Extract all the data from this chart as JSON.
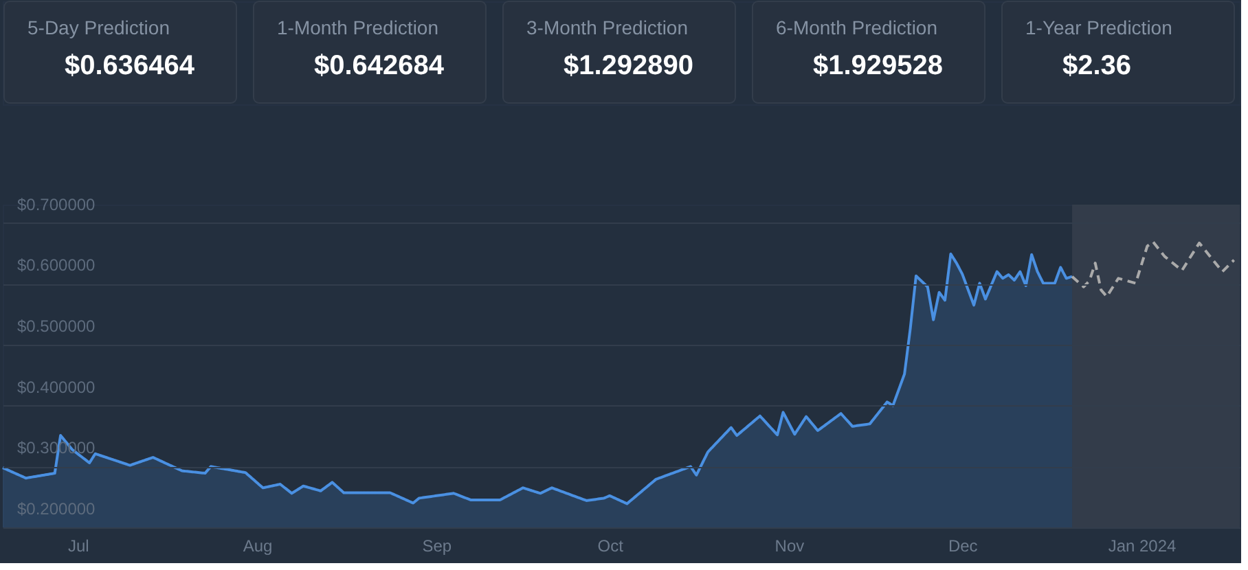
{
  "chart_data": {
    "type": "area",
    "annotations": [
      "5-Day Prediction",
      "$0.636464",
      "1-Month Prediction",
      "$0.642684",
      "3-Month Prediction",
      "$1.292890",
      "6-Month Prediction",
      "$1.929528",
      "1-Year Prediction",
      "$2.36"
    ],
    "series": [
      {
        "color": "#4a90e2",
        "x": [
          "2023-06-18",
          "2023-06-22",
          "2023-06-27",
          "2023-06-28",
          "2023-06-30",
          "2023-07-03",
          "2023-07-04",
          "2023-07-10",
          "2023-07-14",
          "2023-07-19",
          "2023-07-23",
          "2023-07-24",
          "2023-07-30",
          "2023-08-02",
          "2023-08-05",
          "2023-08-07",
          "2023-08-09",
          "2023-08-12",
          "2023-08-14",
          "2023-08-16",
          "2023-08-24",
          "2023-08-28",
          "2023-08-29",
          "2023-09-04",
          "2023-09-07",
          "2023-09-12",
          "2023-09-16",
          "2023-09-19",
          "2023-09-21",
          "2023-09-27",
          "2023-09-30",
          "2023-10-01",
          "2023-10-04",
          "2023-10-09",
          "2023-10-11",
          "2023-10-15",
          "2023-10-16",
          "2023-10-18",
          "2023-10-22",
          "2023-10-23",
          "2023-10-27",
          "2023-10-30",
          "2023-10-31",
          "2023-11-02",
          "2023-11-04",
          "2023-11-06",
          "2023-11-10",
          "2023-11-12",
          "2023-11-15",
          "2023-11-18",
          "2023-11-19",
          "2023-11-21",
          "2023-11-22",
          "2023-11-23",
          "2023-11-25",
          "2023-11-26",
          "2023-11-27",
          "2023-11-28",
          "2023-11-29",
          "2023-11-30",
          "2023-12-01",
          "2023-12-03",
          "2023-12-04",
          "2023-12-05",
          "2023-12-07",
          "2023-12-08",
          "2023-12-09",
          "2023-12-10",
          "2023-12-11",
          "2023-12-12",
          "2023-12-13",
          "2023-12-14",
          "2023-12-15",
          "2023-12-17",
          "2023-12-18",
          "2023-12-19",
          "2023-12-20"
        ],
        "values": [
          0.298,
          0.281,
          0.289,
          0.351,
          0.328,
          0.306,
          0.321,
          0.302,
          0.315,
          0.293,
          0.289,
          0.3,
          0.29,
          0.265,
          0.271,
          0.256,
          0.268,
          0.26,
          0.274,
          0.257,
          0.257,
          0.24,
          0.248,
          0.256,
          0.245,
          0.245,
          0.265,
          0.256,
          0.265,
          0.244,
          0.248,
          0.252,
          0.239,
          0.279,
          0.286,
          0.3,
          0.286,
          0.324,
          0.364,
          0.351,
          0.383,
          0.352,
          0.389,
          0.353,
          0.382,
          0.359,
          0.387,
          0.366,
          0.37,
          0.406,
          0.4,
          0.452,
          0.526,
          0.613,
          0.595,
          0.541,
          0.586,
          0.573,
          0.649,
          0.634,
          0.616,
          0.565,
          0.601,
          0.575,
          0.62,
          0.609,
          0.615,
          0.606,
          0.62,
          0.597,
          0.648,
          0.62,
          0.601,
          0.601,
          0.627,
          0.609,
          0.612
        ]
      },
      {
        "type": "line",
        "color": "#aaaaaa",
        "line_style": "dashed",
        "x": [
          "2023-12-20",
          "2023-12-22",
          "2023-12-23",
          "2023-12-24",
          "2023-12-25",
          "2023-12-26",
          "2023-12-28",
          "2023-12-31",
          "2024-01-02",
          "2024-01-03",
          "2024-01-05",
          "2024-01-08",
          "2024-01-11",
          "2024-01-15",
          "2024-01-17"
        ],
        "values": [
          0.612,
          0.595,
          0.605,
          0.634,
          0.59,
          0.579,
          0.609,
          0.601,
          0.662,
          0.669,
          0.645,
          0.622,
          0.667,
          0.62,
          0.639
        ]
      }
    ],
    "bands": [
      {
        "axis": "x",
        "from": "2023-12-20",
        "to": "2024-01-18",
        "color": "#353e4b"
      }
    ],
    "xlim": [
      "2023-06-18",
      "2024-01-18"
    ],
    "xticks": [
      {
        "value": "2023-07-01",
        "label": "Jul"
      },
      {
        "value": "2023-08-01",
        "label": "Aug"
      },
      {
        "value": "2023-09-01",
        "label": "Sep"
      },
      {
        "value": "2023-10-01",
        "label": "Oct"
      },
      {
        "value": "2023-11-01",
        "label": "Nov"
      },
      {
        "value": "2023-12-01",
        "label": "Dec"
      },
      {
        "value": "2024-01-01",
        "label": "Jan 2024"
      }
    ],
    "ylim": [
      0.2,
      0.73
    ],
    "yticks": [
      {
        "value": 0.2,
        "label": "$0.200000"
      },
      {
        "value": 0.3,
        "label": "$0.300000"
      },
      {
        "value": 0.4,
        "label": "$0.400000"
      },
      {
        "value": 0.5,
        "label": "$0.500000"
      },
      {
        "value": 0.6,
        "label": "$0.600000"
      },
      {
        "value": 0.7,
        "label": "$0.700000"
      }
    ],
    "grid": "y",
    "marker": "none"
  }
}
